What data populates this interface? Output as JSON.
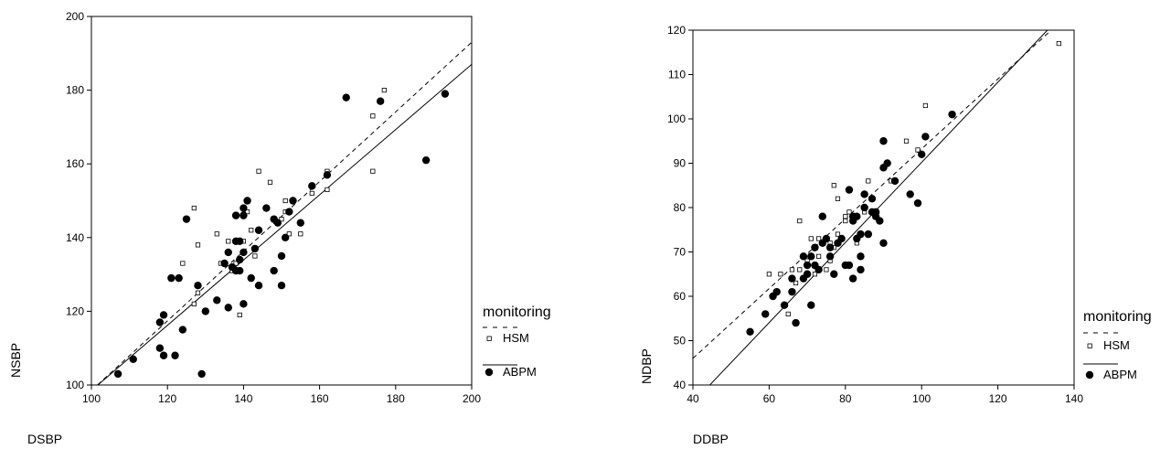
{
  "chart_data": [
    {
      "type": "scatter",
      "xlabel": "DSBP",
      "ylabel": "NSBP",
      "xlim": [
        100,
        200
      ],
      "ylim": [
        100,
        200
      ],
      "xticks": [
        100,
        120,
        140,
        160,
        180,
        200
      ],
      "yticks": [
        100,
        120,
        140,
        160,
        180,
        200
      ],
      "legend": {
        "title": "monitoring",
        "placement": "right",
        "entries": [
          {
            "label": "HSM",
            "marker": "open-square",
            "line": "dashed"
          },
          {
            "label": "ABPM",
            "marker": "filled-circle",
            "line": "solid"
          }
        ]
      },
      "series": [
        {
          "name": "HSM",
          "marker": "open-square",
          "points": [
            [
              124,
              133
            ],
            [
              127,
              122
            ],
            [
              127,
              148
            ],
            [
              128,
              138
            ],
            [
              128,
              125
            ],
            [
              133,
              141
            ],
            [
              134,
              133
            ],
            [
              136,
              139
            ],
            [
              138,
              133
            ],
            [
              139,
              119
            ],
            [
              140,
              139
            ],
            [
              141,
              147
            ],
            [
              142,
              142
            ],
            [
              143,
              135
            ],
            [
              144,
              158
            ],
            [
              147,
              155
            ],
            [
              149,
              144
            ],
            [
              151,
              150
            ],
            [
              151,
              147
            ],
            [
              152,
              141
            ],
            [
              155,
              141
            ],
            [
              158,
              152
            ],
            [
              162,
              153
            ],
            [
              162,
              158
            ],
            [
              174,
              173
            ],
            [
              174,
              158
            ],
            [
              177,
              180
            ],
            [
              139,
              134
            ],
            [
              150,
              145
            ],
            [
              137,
              131
            ]
          ]
        },
        {
          "name": "ABPM",
          "marker": "filled-circle",
          "points": [
            [
              107,
              103
            ],
            [
              111,
              107
            ],
            [
              118,
              110
            ],
            [
              118,
              117
            ],
            [
              119,
              108
            ],
            [
              119,
              119
            ],
            [
              121,
              129
            ],
            [
              122,
              108
            ],
            [
              123,
              129
            ],
            [
              124,
              115
            ],
            [
              125,
              145
            ],
            [
              128,
              127
            ],
            [
              129,
              103
            ],
            [
              130,
              120
            ],
            [
              133,
              123
            ],
            [
              135,
              133
            ],
            [
              136,
              121
            ],
            [
              136,
              136
            ],
            [
              137,
              132
            ],
            [
              138,
              131
            ],
            [
              138,
              139
            ],
            [
              138,
              146
            ],
            [
              139,
              131
            ],
            [
              139,
              134
            ],
            [
              139,
              139
            ],
            [
              140,
              122
            ],
            [
              140,
              136
            ],
            [
              140,
              146
            ],
            [
              141,
              150
            ],
            [
              142,
              129
            ],
            [
              143,
              137
            ],
            [
              144,
              127
            ],
            [
              144,
              142
            ],
            [
              146,
              148
            ],
            [
              148,
              131
            ],
            [
              148,
              145
            ],
            [
              149,
              144
            ],
            [
              150,
              127
            ],
            [
              150,
              135
            ],
            [
              151,
              140
            ],
            [
              152,
              147
            ],
            [
              153,
              150
            ],
            [
              155,
              144
            ],
            [
              158,
              154
            ],
            [
              162,
              157
            ],
            [
              167,
              178
            ],
            [
              176,
              177
            ],
            [
              188,
              161
            ],
            [
              193,
              179
            ],
            [
              140,
              148
            ]
          ]
        }
      ],
      "fit_lines": [
        {
          "name": "HSM",
          "style": "dashed",
          "x": [
            100,
            200
          ],
          "y": [
            98.5,
            193
          ]
        },
        {
          "name": "ABPM",
          "style": "solid",
          "x": [
            100,
            200
          ],
          "y": [
            98.5,
            187
          ]
        }
      ]
    },
    {
      "type": "scatter",
      "xlabel": "DDBP",
      "ylabel": "NDBP",
      "xlim": [
        40,
        140
      ],
      "ylim": [
        40,
        120
      ],
      "xticks": [
        40,
        60,
        80,
        100,
        120,
        140
      ],
      "yticks": [
        40,
        50,
        60,
        70,
        80,
        90,
        100,
        110,
        120
      ],
      "legend": {
        "title": "monitoring",
        "placement": "right",
        "entries": [
          {
            "label": "HSM",
            "marker": "open-square",
            "line": "dashed"
          },
          {
            "label": "ABPM",
            "marker": "filled-circle",
            "line": "solid"
          }
        ]
      },
      "series": [
        {
          "name": "HSM",
          "marker": "open-square",
          "points": [
            [
              60,
              65
            ],
            [
              63,
              65
            ],
            [
              65,
              56
            ],
            [
              66,
              64
            ],
            [
              66,
              66
            ],
            [
              67,
              63
            ],
            [
              68,
              66
            ],
            [
              68,
              77
            ],
            [
              70,
              68
            ],
            [
              71,
              73
            ],
            [
              72,
              65
            ],
            [
              73,
              69
            ],
            [
              73,
              73
            ],
            [
              74,
              78
            ],
            [
              75,
              66
            ],
            [
              76,
              68
            ],
            [
              76,
              72
            ],
            [
              77,
              71
            ],
            [
              77,
              85
            ],
            [
              78,
              74
            ],
            [
              78,
              82
            ],
            [
              80,
              77
            ],
            [
              80,
              78
            ],
            [
              81,
              79
            ],
            [
              83,
              72
            ],
            [
              85,
              79
            ],
            [
              86,
              86
            ],
            [
              87,
              79
            ],
            [
              89,
              77
            ],
            [
              92,
              86
            ],
            [
              96,
              95
            ],
            [
              99,
              93
            ],
            [
              101,
              103
            ],
            [
              136,
              117
            ]
          ]
        },
        {
          "name": "ABPM",
          "marker": "filled-circle",
          "points": [
            [
              55,
              52
            ],
            [
              59,
              56
            ],
            [
              61,
              60
            ],
            [
              62,
              61
            ],
            [
              64,
              58
            ],
            [
              66,
              61
            ],
            [
              66,
              64
            ],
            [
              67,
              54
            ],
            [
              69,
              69
            ],
            [
              69,
              64
            ],
            [
              70,
              65
            ],
            [
              70,
              67
            ],
            [
              71,
              58
            ],
            [
              71,
              69
            ],
            [
              72,
              67
            ],
            [
              72,
              71
            ],
            [
              73,
              66
            ],
            [
              74,
              72
            ],
            [
              75,
              73
            ],
            [
              74,
              78
            ],
            [
              76,
              69
            ],
            [
              76,
              71
            ],
            [
              77,
              65
            ],
            [
              78,
              72
            ],
            [
              79,
              73
            ],
            [
              80,
              67
            ],
            [
              81,
              67
            ],
            [
              81,
              84
            ],
            [
              82,
              77
            ],
            [
              82,
              78
            ],
            [
              82,
              64
            ],
            [
              83,
              73
            ],
            [
              83,
              78
            ],
            [
              84,
              66
            ],
            [
              84,
              69
            ],
            [
              85,
              80
            ],
            [
              85,
              83
            ],
            [
              86,
              74
            ],
            [
              87,
              82
            ],
            [
              87,
              79
            ],
            [
              88,
              79
            ],
            [
              89,
              77
            ],
            [
              90,
              72
            ],
            [
              90,
              89
            ],
            [
              90,
              95
            ],
            [
              91,
              90
            ],
            [
              93,
              86
            ],
            [
              97,
              83
            ],
            [
              99,
              81
            ],
            [
              100,
              92
            ],
            [
              101,
              96
            ],
            [
              108,
              101
            ],
            [
              88,
              78
            ],
            [
              84,
              74
            ]
          ]
        }
      ],
      "fit_lines": [
        {
          "name": "HSM",
          "style": "dashed",
          "x": [
            40,
            134
          ],
          "y": [
            46,
            120
          ]
        },
        {
          "name": "ABPM",
          "style": "solid",
          "x": [
            40,
            133
          ],
          "y": [
            36,
            120
          ]
        }
      ]
    }
  ]
}
